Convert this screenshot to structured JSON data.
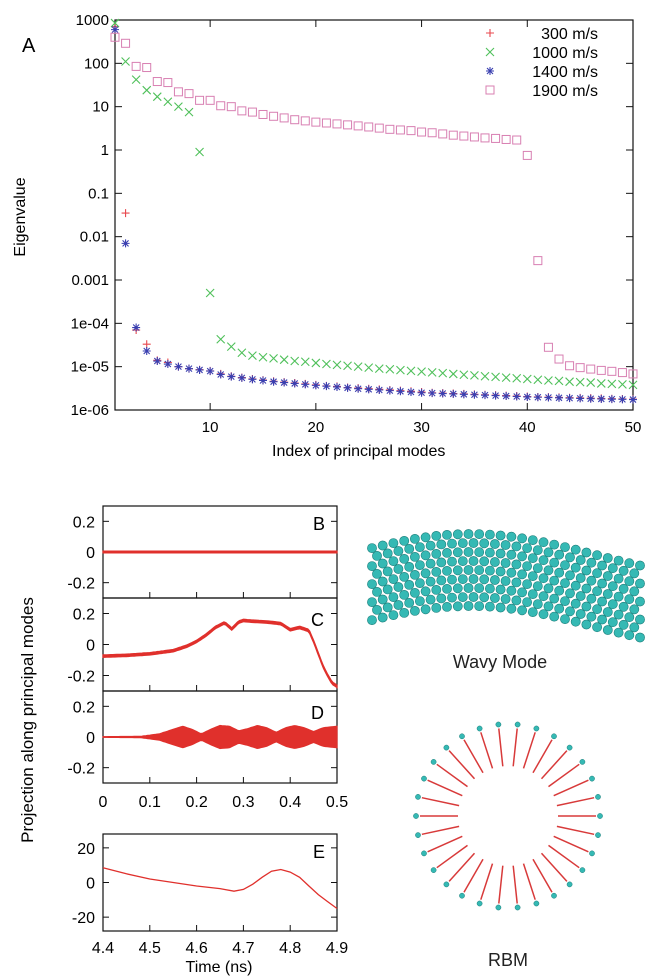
{
  "colors": {
    "s300": "#e8484e",
    "s1000": "#4fc05a",
    "s1400": "#3a3fb0",
    "s1900": "#d87fb2",
    "trace": "#e0302c",
    "atom": "#35b9b4",
    "atom_dark": "#1e7f7b",
    "arrow": "#d83a3a"
  },
  "chart_data": [
    {
      "panel": "A",
      "type": "scatter",
      "xlabel": "Index of principal modes",
      "ylabel": "Eigenvalue",
      "xscale": "linear",
      "yscale": "log",
      "xlim": [
        1,
        50
      ],
      "ylim": [
        1e-06,
        1000
      ],
      "xticks": [
        10,
        20,
        30,
        40,
        50
      ],
      "yticks": [
        1e-06,
        1e-05,
        0.0001,
        0.001,
        0.01,
        0.1,
        1,
        10,
        100,
        1000
      ],
      "ytick_labels": [
        "1e-06",
        "1e-05",
        "1e-04",
        "0.001",
        "0.01",
        "0.1",
        "1",
        "10",
        "100",
        "1000"
      ],
      "legend_position": "top-right",
      "series": [
        {
          "name": "300 m/s",
          "marker": "plus",
          "x": [
            1,
            2,
            3,
            4,
            5,
            6,
            7,
            8,
            9,
            10,
            11,
            12,
            13,
            14,
            15,
            16,
            17,
            18,
            19,
            20,
            21,
            22,
            23,
            24,
            25,
            26,
            27,
            28,
            29,
            30,
            31,
            32,
            33,
            34,
            35,
            36,
            37,
            38,
            39,
            40,
            41,
            42,
            43,
            44,
            45,
            46,
            47,
            48,
            49,
            50
          ],
          "y": [
            700,
            0.035,
            7e-05,
            3.3e-05,
            1.4e-05,
            1.25e-05,
            1e-05,
            9e-06,
            8.5e-06,
            8e-06,
            6.8e-06,
            6e-06,
            5.6e-06,
            5.2e-06,
            4.9e-06,
            4.6e-06,
            4.4e-06,
            4.2e-06,
            4e-06,
            3.8e-06,
            3.6e-06,
            3.5e-06,
            3.3e-06,
            3.2e-06,
            3.1e-06,
            3e-06,
            2.9e-06,
            2.8e-06,
            2.7e-06,
            2.6e-06,
            2.5e-06,
            2.45e-06,
            2.4e-06,
            2.35e-06,
            2.3e-06,
            2.25e-06,
            2.2e-06,
            2.15e-06,
            2.1e-06,
            2.05e-06,
            2e-06,
            1.98e-06,
            1.95e-06,
            1.92e-06,
            1.9e-06,
            1.88e-06,
            1.85e-06,
            1.82e-06,
            1.8e-06,
            1.78e-06
          ]
        },
        {
          "name": "1000 m/s",
          "marker": "cross",
          "x": [
            1,
            2,
            3,
            4,
            5,
            6,
            7,
            8,
            9,
            10,
            11,
            12,
            13,
            14,
            15,
            16,
            17,
            18,
            19,
            20,
            21,
            22,
            23,
            24,
            25,
            26,
            27,
            28,
            29,
            30,
            31,
            32,
            33,
            34,
            35,
            36,
            37,
            38,
            39,
            40,
            41,
            42,
            43,
            44,
            45,
            46,
            47,
            48,
            49,
            50
          ],
          "y": [
            850,
            110,
            42,
            24,
            17,
            13,
            10,
            7.5,
            0.9,
            0.0005,
            4.3e-05,
            2.9e-05,
            2.1e-05,
            1.8e-05,
            1.65e-05,
            1.55e-05,
            1.45e-05,
            1.35e-05,
            1.3e-05,
            1.22e-05,
            1.15e-05,
            1.1e-05,
            1.05e-05,
            1e-05,
            9.5e-06,
            9e-06,
            8.7e-06,
            8.3e-06,
            8e-06,
            7.7e-06,
            7.4e-06,
            7.1e-06,
            6.8e-06,
            6.5e-06,
            6.3e-06,
            6e-06,
            5.8e-06,
            5.6e-06,
            5.4e-06,
            5.2e-06,
            5e-06,
            4.8e-06,
            4.7e-06,
            4.5e-06,
            4.4e-06,
            4.3e-06,
            4.1e-06,
            4e-06,
            3.9e-06,
            3.8e-06
          ]
        },
        {
          "name": "1400 m/s",
          "marker": "star",
          "x": [
            1,
            2,
            3,
            4,
            5,
            6,
            7,
            8,
            9,
            10,
            11,
            12,
            13,
            14,
            15,
            16,
            17,
            18,
            19,
            20,
            21,
            22,
            23,
            24,
            25,
            26,
            27,
            28,
            29,
            30,
            31,
            32,
            33,
            34,
            35,
            36,
            37,
            38,
            39,
            40,
            41,
            42,
            43,
            44,
            45,
            46,
            47,
            48,
            49,
            50
          ],
          "y": [
            600,
            0.007,
            8e-05,
            2.3e-05,
            1.35e-05,
            1.15e-05,
            1e-05,
            9e-06,
            8.4e-06,
            7.9e-06,
            6.6e-06,
            5.9e-06,
            5.5e-06,
            5.1e-06,
            4.8e-06,
            4.5e-06,
            4.3e-06,
            4.1e-06,
            3.9e-06,
            3.7e-06,
            3.55e-06,
            3.4e-06,
            3.25e-06,
            3.1e-06,
            3e-06,
            2.9e-06,
            2.8e-06,
            2.7e-06,
            2.6e-06,
            2.5e-06,
            2.45e-06,
            2.4e-06,
            2.35e-06,
            2.3e-06,
            2.25e-06,
            2.2e-06,
            2.15e-06,
            2.1e-06,
            2.05e-06,
            2e-06,
            1.97e-06,
            1.94e-06,
            1.91e-06,
            1.88e-06,
            1.85e-06,
            1.82e-06,
            1.8e-06,
            1.78e-06,
            1.76e-06,
            1.74e-06
          ]
        },
        {
          "name": "1900 m/s",
          "marker": "square",
          "x": [
            1,
            2,
            3,
            4,
            5,
            6,
            7,
            8,
            9,
            10,
            11,
            12,
            13,
            14,
            15,
            16,
            17,
            18,
            19,
            20,
            21,
            22,
            23,
            24,
            25,
            26,
            27,
            28,
            29,
            30,
            31,
            32,
            33,
            34,
            35,
            36,
            37,
            38,
            39,
            40,
            41,
            42,
            43,
            44,
            45,
            46,
            47,
            48,
            49,
            50
          ],
          "y": [
            400,
            290,
            85,
            80,
            38,
            36,
            22,
            20,
            14,
            14,
            10.5,
            10,
            8,
            7.5,
            6.6,
            6,
            5.5,
            5,
            4.7,
            4.4,
            4.2,
            4,
            3.8,
            3.6,
            3.4,
            3.2,
            3.0,
            2.9,
            2.8,
            2.6,
            2.5,
            2.35,
            2.2,
            2.1,
            2.0,
            1.9,
            1.85,
            1.75,
            1.7,
            0.75,
            0.0028,
            2.8e-05,
            1.5e-05,
            1.05e-05,
            9.5e-06,
            8.8e-06,
            8.2e-06,
            7.8e-06,
            7.3e-06,
            6.8e-06
          ]
        }
      ]
    },
    {
      "panel": "B",
      "type": "line",
      "xlim": [
        0,
        0.5
      ],
      "ylim": [
        -0.3,
        0.3
      ],
      "yticks": [
        -0.2,
        0,
        0.2
      ],
      "ytick_labels": [
        "-0.2",
        "0",
        "0.2"
      ],
      "envelope": {
        "x": [
          0,
          0.5
        ],
        "y": [
          0.006,
          0.006
        ]
      },
      "mean": {
        "x": [
          0,
          0.5
        ],
        "y": [
          0,
          0
        ]
      }
    },
    {
      "panel": "C",
      "type": "line",
      "xlim": [
        0,
        0.5
      ],
      "ylim": [
        -0.3,
        0.3
      ],
      "yticks": [
        -0.2,
        0,
        0.2
      ],
      "ytick_labels": [
        "-0.2",
        "0",
        "0.2"
      ],
      "envelope": {
        "x": [
          0,
          0.5
        ],
        "y": [
          0.008,
          0.008
        ]
      },
      "mean": {
        "x": [
          0,
          0.05,
          0.1,
          0.15,
          0.18,
          0.2,
          0.22,
          0.24,
          0.26,
          0.275,
          0.29,
          0.3,
          0.32,
          0.35,
          0.38,
          0.4,
          0.42,
          0.44,
          0.45,
          0.46,
          0.47,
          0.48,
          0.49,
          0.5
        ],
        "y": [
          -0.075,
          -0.07,
          -0.06,
          -0.04,
          -0.01,
          0.02,
          0.06,
          0.11,
          0.14,
          0.1,
          0.145,
          0.155,
          0.15,
          0.145,
          0.135,
          0.095,
          0.11,
          0.09,
          0.02,
          -0.06,
          -0.14,
          -0.2,
          -0.25,
          -0.27
        ]
      }
    },
    {
      "panel": "D",
      "type": "line",
      "xlim": [
        0,
        0.5
      ],
      "ylim": [
        -0.3,
        0.3
      ],
      "xticks": [
        0,
        0.1,
        0.2,
        0.3,
        0.4,
        0.5
      ],
      "xtick_labels": [
        "0",
        "0.1",
        "0.2",
        "0.3",
        "0.4",
        "0.5"
      ],
      "yticks": [
        -0.2,
        0,
        0.2
      ],
      "ytick_labels": [
        "-0.2",
        "0",
        "0.2"
      ],
      "envelope": {
        "x": [
          0,
          0.08,
          0.12,
          0.15,
          0.17,
          0.19,
          0.21,
          0.23,
          0.25,
          0.27,
          0.29,
          0.31,
          0.33,
          0.35,
          0.37,
          0.39,
          0.41,
          0.43,
          0.45,
          0.47,
          0.5
        ],
        "y": [
          0.002,
          0.004,
          0.02,
          0.05,
          0.07,
          0.05,
          0.02,
          0.05,
          0.075,
          0.07,
          0.04,
          0.055,
          0.075,
          0.06,
          0.03,
          0.06,
          0.075,
          0.06,
          0.035,
          0.06,
          0.07
        ]
      },
      "mean": {
        "x": [
          0,
          0.5
        ],
        "y": [
          0,
          0
        ]
      }
    },
    {
      "panel": "E",
      "type": "line",
      "xlim": [
        4.4,
        4.9
      ],
      "ylim": [
        -28,
        28
      ],
      "xticks": [
        4.4,
        4.5,
        4.6,
        4.7,
        4.8,
        4.9
      ],
      "xtick_labels": [
        "4.4",
        "4.5",
        "4.6",
        "4.7",
        "4.8",
        "4.9"
      ],
      "yticks": [
        -20,
        0,
        20
      ],
      "ytick_labels": [
        "-20",
        "0",
        "20"
      ],
      "xlabel": "Time (ns)",
      "mean": {
        "x": [
          4.4,
          4.45,
          4.5,
          4.55,
          4.6,
          4.65,
          4.68,
          4.7,
          4.72,
          4.74,
          4.76,
          4.78,
          4.8,
          4.82,
          4.84,
          4.86,
          4.88,
          4.9
        ],
        "y": [
          8.5,
          5,
          2,
          0,
          -2,
          -3.5,
          -5,
          -4,
          -1,
          3,
          6.5,
          7.5,
          6,
          3,
          -2,
          -7,
          -11,
          -15
        ]
      }
    }
  ],
  "shared_ylabel": "Projection along principal modes",
  "labels": {
    "panel_a": "A",
    "panel_b": "B",
    "panel_c": "C",
    "panel_d": "D",
    "panel_e": "E",
    "wavy_caption": "Wavy Mode",
    "rbm_caption": "RBM"
  },
  "icons": {
    "wavy_mode_image": "carbon-nanotube-wavy-mode",
    "rbm_image": "nanotube-radial-breathing-mode-arrows"
  }
}
